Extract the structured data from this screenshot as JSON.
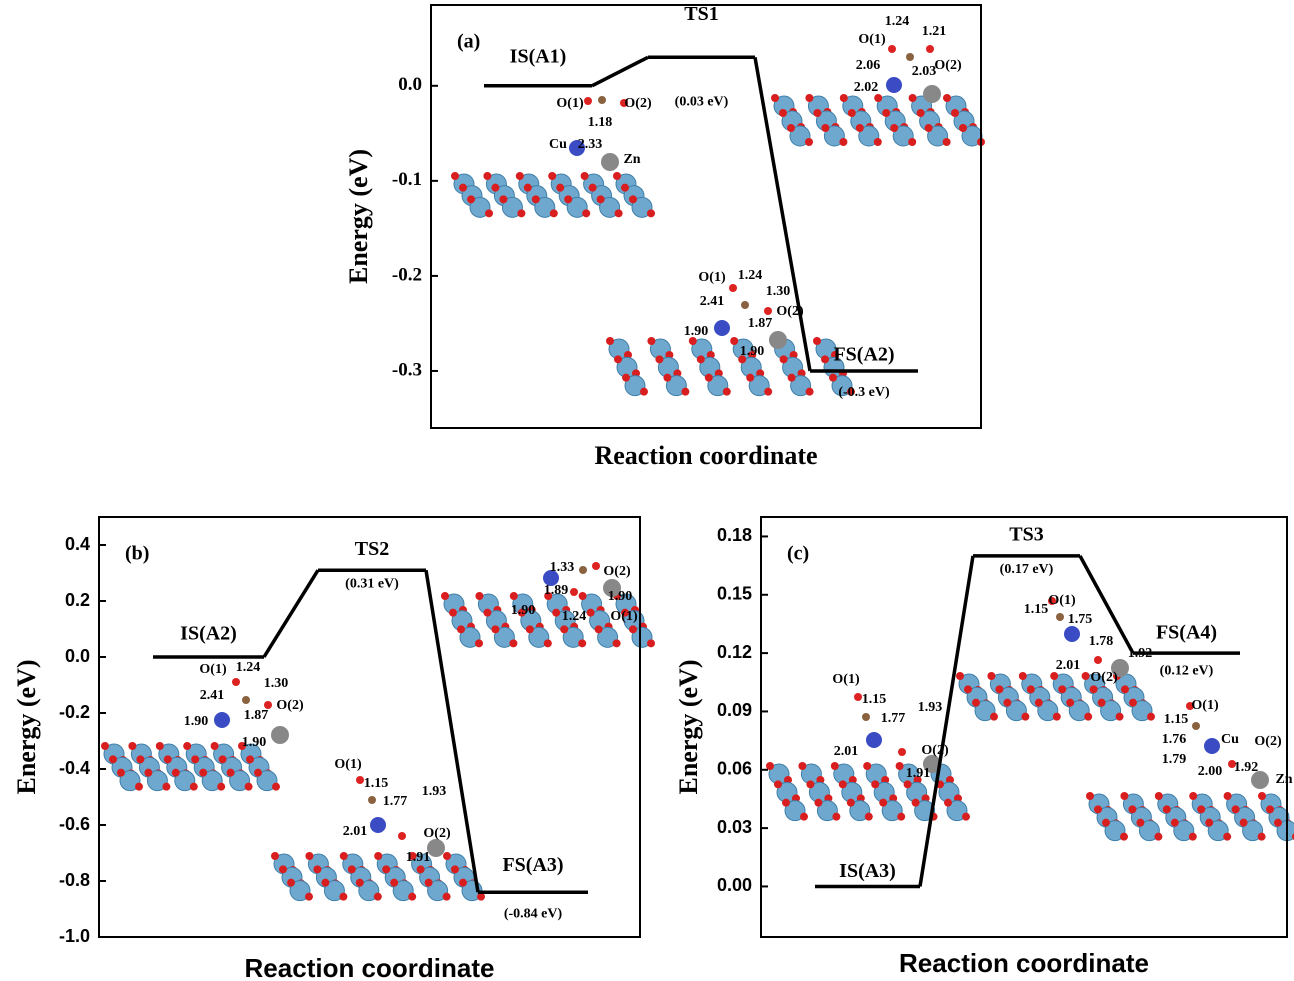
{
  "chart_data": [
    {
      "type": "line",
      "panel_label": "(a)",
      "xlabel": "Reaction coordinate",
      "ylabel": "Energy (eV)",
      "categories": [
        "IS(A1)",
        "TS1",
        "FS(A2)"
      ],
      "values": [
        0,
        0.03,
        -0.3
      ],
      "value_labels": [
        null,
        "(0.03 eV)",
        "(-0.3 eV)"
      ],
      "ylim": [
        -0.36,
        0.085
      ],
      "yticks": [
        -0.3,
        -0.2,
        -0.1,
        {
          "value": 0,
          "label": "0.0"
        }
      ],
      "annotations": [
        "O(1)",
        "1.18",
        "O(2)",
        "Cu",
        "2.33",
        "Zn",
        "1.24",
        "1.21",
        "O(1)",
        "2.06",
        "2.03",
        "O(2)",
        "2.02",
        "O(1)",
        "1.24",
        "2.41",
        "1.30",
        "1.87",
        "O(2)",
        "1.90",
        "1.90"
      ]
    },
    {
      "type": "line",
      "panel_label": "(b)",
      "xlabel": "Reaction coordinate",
      "ylabel": "Energy (eV)",
      "categories": [
        "IS(A2)",
        "TS2",
        "FS(A3)"
      ],
      "values": [
        0,
        0.31,
        -0.84
      ],
      "value_labels": [
        null,
        "(0.31 eV)",
        "(-0.84 eV)"
      ],
      "ylim": [
        -1.0,
        0.5
      ],
      "yticks": [
        {
          "value": -1,
          "label": "-1.0"
        },
        -0.8,
        -0.6,
        -0.4,
        -0.2,
        {
          "value": 0,
          "label": "0.0"
        },
        0.2,
        0.4
      ],
      "annotations": [
        "O(1)",
        "1.24",
        "2.41",
        "1.30",
        "1.87",
        "O(2)",
        "1.90",
        "1.90",
        "O(1)",
        "1.15",
        "1.77",
        "1.93",
        "2.01",
        "O(2)",
        "1.91",
        "1.33",
        "O(2)",
        "1.89",
        "1.90",
        "1.90",
        "1.24",
        "O(1)"
      ]
    },
    {
      "type": "line",
      "panel_label": "(c)",
      "xlabel": "Reaction coordinate",
      "ylabel": "Energy (eV)",
      "categories": [
        "IS(A3)",
        "TS3",
        "FS(A4)"
      ],
      "values": [
        0,
        0.17,
        0.12
      ],
      "value_labels": [
        null,
        "(0.17 eV)",
        "(0.12 eV)"
      ],
      "ylim": [
        -0.026,
        0.19
      ],
      "yticks": [
        {
          "value": 0,
          "label": "0.00"
        },
        0.03,
        0.06,
        0.09,
        0.12,
        0.15,
        0.18
      ],
      "annotations": [
        "O(1)",
        "1.15",
        "1.77",
        "1.93",
        "2.01",
        "O(2)",
        "1.91",
        "O(1)",
        "1.15",
        "1.75",
        "1.78",
        "1.92",
        "2.01",
        "O(2)",
        "O(1)",
        "1.15",
        "1.76",
        "Cu",
        "O(2)",
        "1.79",
        "2.00",
        "1.92",
        "Zn"
      ]
    }
  ]
}
